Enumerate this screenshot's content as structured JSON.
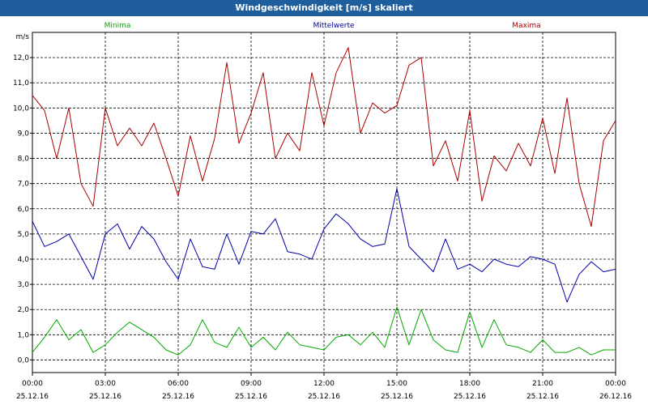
{
  "window": {
    "title": "Windgeschwindigkeit [m/s] skaliert"
  },
  "chart_data": {
    "type": "line",
    "ylabel": "m/s",
    "ylim": [
      -0.5,
      13.0
    ],
    "yticks": [
      0.0,
      1.0,
      2.0,
      3.0,
      4.0,
      5.0,
      6.0,
      7.0,
      8.0,
      9.0,
      10.0,
      11.0,
      12.0
    ],
    "ytick_labels": [
      "0,0",
      "1,0",
      "2,0",
      "3,0",
      "4,0",
      "5,0",
      "6,0",
      "7,0",
      "8,0",
      "9,0",
      "10,0",
      "11,0",
      "12,0"
    ],
    "xlim": [
      0,
      24
    ],
    "xticks": [
      0,
      3,
      6,
      9,
      12,
      15,
      18,
      21,
      24
    ],
    "xtick_time_labels": [
      "00:00",
      "03:00",
      "06:00",
      "09:00",
      "12:00",
      "15:00",
      "18:00",
      "21:00",
      "00:00"
    ],
    "xtick_date_labels": [
      "25.12.16",
      "25.12.16",
      "25.12.16",
      "25.12.16",
      "25.12.16",
      "25.12.16",
      "25.12.16",
      "25.12.16",
      "26.12.16"
    ],
    "grid": true,
    "legend_position": "top",
    "series": [
      {
        "name": "Minima",
        "color": "#00aa00",
        "x": [
          0,
          0.5,
          1,
          1.5,
          2,
          2.5,
          3,
          3.5,
          4,
          4.5,
          5,
          5.5,
          6,
          6.5,
          7,
          7.5,
          8,
          8.5,
          9,
          9.5,
          10,
          10.5,
          11,
          11.5,
          12,
          12.5,
          13,
          13.5,
          14,
          14.5,
          15,
          15.5,
          16,
          16.5,
          17,
          17.5,
          18,
          18.5,
          19,
          19.5,
          20,
          20.5,
          21,
          21.5,
          22,
          22.5,
          23,
          23.5,
          24
        ],
        "values": [
          0.3,
          0.9,
          1.6,
          0.8,
          1.2,
          0.3,
          0.6,
          1.1,
          1.5,
          1.2,
          0.9,
          0.4,
          0.2,
          0.6,
          1.6,
          0.7,
          0.5,
          1.3,
          0.5,
          0.9,
          0.4,
          1.1,
          0.6,
          0.5,
          0.4,
          0.9,
          1.0,
          0.6,
          1.1,
          0.5,
          2.1,
          0.6,
          2.0,
          0.8,
          0.4,
          0.3,
          1.9,
          0.5,
          1.6,
          0.6,
          0.5,
          0.3,
          0.8,
          0.3,
          0.3,
          0.5,
          0.2,
          0.4,
          0.4
        ]
      },
      {
        "name": "Mittelwerte",
        "color": "#0000aa",
        "x": [
          0,
          0.5,
          1,
          1.5,
          2,
          2.5,
          3,
          3.5,
          4,
          4.5,
          5,
          5.5,
          6,
          6.5,
          7,
          7.5,
          8,
          8.5,
          9,
          9.5,
          10,
          10.5,
          11,
          11.5,
          12,
          12.5,
          13,
          13.5,
          14,
          14.5,
          15,
          15.5,
          16,
          16.5,
          17,
          17.5,
          18,
          18.5,
          19,
          19.5,
          20,
          20.5,
          21,
          21.5,
          22,
          22.5,
          23,
          23.5,
          24
        ],
        "values": [
          5.5,
          4.5,
          4.7,
          5.0,
          4.1,
          3.2,
          5.0,
          5.4,
          4.4,
          5.3,
          4.8,
          3.9,
          3.2,
          4.8,
          3.7,
          3.6,
          5.0,
          3.8,
          5.1,
          5.0,
          5.6,
          4.3,
          4.2,
          4.0,
          5.2,
          5.8,
          5.4,
          4.8,
          4.5,
          4.6,
          6.8,
          4.5,
          4.0,
          3.5,
          4.8,
          3.6,
          3.8,
          3.5,
          4.0,
          3.8,
          3.7,
          4.1,
          4.0,
          3.8,
          2.3,
          3.4,
          3.9,
          3.5,
          3.6
        ]
      },
      {
        "name": "Maxima",
        "color": "#aa0000",
        "x": [
          0,
          0.5,
          1,
          1.5,
          2,
          2.5,
          3,
          3.5,
          4,
          4.5,
          5,
          5.5,
          6,
          6.5,
          7,
          7.5,
          8,
          8.5,
          9,
          9.5,
          10,
          10.5,
          11,
          11.5,
          12,
          12.5,
          13,
          13.5,
          14,
          14.5,
          15,
          15.5,
          16,
          16.5,
          17,
          17.5,
          18,
          18.5,
          19,
          19.5,
          20,
          20.5,
          21,
          21.5,
          22,
          22.5,
          23,
          23.5,
          24
        ],
        "values": [
          10.5,
          9.9,
          8.0,
          10.0,
          7.0,
          6.1,
          10.0,
          8.5,
          9.2,
          8.5,
          9.4,
          8.0,
          6.5,
          8.9,
          7.1,
          8.8,
          11.8,
          8.6,
          9.8,
          11.4,
          8.0,
          9.0,
          8.3,
          11.4,
          9.3,
          11.4,
          12.4,
          9.0,
          10.2,
          9.8,
          10.1,
          11.7,
          12.0,
          7.7,
          8.7,
          7.1,
          9.9,
          6.3,
          8.1,
          7.5,
          8.6,
          7.7,
          9.6,
          7.4,
          10.4,
          7.0,
          5.3,
          8.7,
          9.5
        ]
      }
    ]
  }
}
